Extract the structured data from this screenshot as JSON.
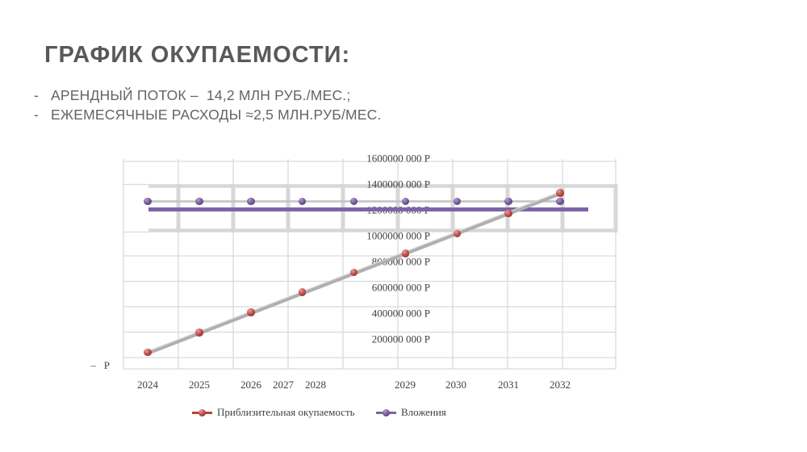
{
  "slide": {
    "title": "ГРАФИК ОКУПАЕМОСТИ:",
    "bullets": [
      {
        "marker": "-",
        "text": "АРЕНДНЫЙ ПОТОК –  14,2 МЛН РУБ./МЕС.;"
      },
      {
        "marker": "-",
        "text": "ЕЖЕМЕСЯЧНЫЕ РАСХОДЫ ≈2,5 МЛН.РУБ/МЕС."
      }
    ]
  },
  "chart_data": {
    "type": "line",
    "x": [
      2024,
      2025,
      2026,
      2027,
      2028,
      2029,
      2030,
      2031,
      2032
    ],
    "x_axis": {
      "tick_labels": [
        "2024",
        "2025",
        "2026",
        "2027",
        "2028",
        "2029",
        "2030",
        "2031",
        "2032"
      ]
    },
    "y_axis": {
      "tick_labels": [
        "1600000 000 Р",
        "1400000 000 Р",
        "1200000 000 Р",
        "1000000 000 Р",
        "800000 000 Р",
        "600000 000 Р",
        "400000 000 Р",
        "200000 000 Р"
      ],
      "zero_label": "–   Р",
      "ylim": [
        0,
        1600000000
      ],
      "units": "Р"
    },
    "series": [
      {
        "name": "Приблизительная окупаемость",
        "marker_color": "#C0504D",
        "line_color": "#AFAFAF",
        "values": [
          90000000,
          245000000,
          400000000,
          555000000,
          710000000,
          855000000,
          1010000000,
          1165000000,
          1325000000
        ]
      },
      {
        "name": "Вложения",
        "marker_color": "#8064A2",
        "line_color": "#7C66A4",
        "values": [
          1200000000,
          1200000000,
          1200000000,
          1200000000,
          1200000000,
          1200000000,
          1200000000,
          1200000000,
          1200000000
        ]
      }
    ],
    "legend": {
      "position": "bottom"
    },
    "grid": true
  }
}
